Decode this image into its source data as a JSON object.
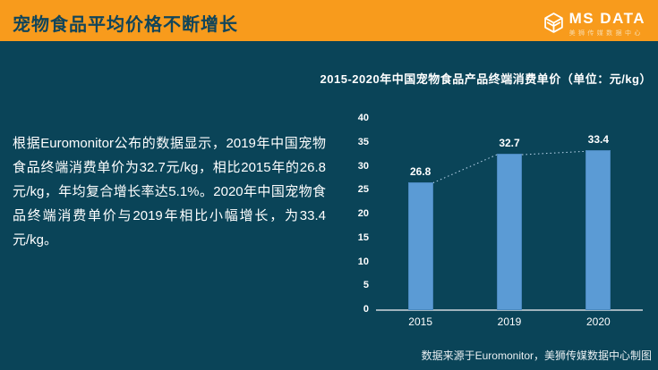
{
  "header": {
    "title": "宠物食品平均价格不断增长",
    "logo": {
      "name": "MS DATA",
      "subtitle": "美狮传媒数据中心",
      "icon": "cube-layers-icon"
    }
  },
  "body": {
    "paragraph": "根据Euromonitor公布的数据显示，2019年中国宠物食品终端消费单价为32.7元/kg，相比2015年的26.8元/kg，年均复合增长率达5.1%。2020年中国宠物食品终端消费单价与2019年相比小幅增长，为33.4元/kg。",
    "source_note": "数据来源于Euromonitor，美狮传媒数据中心制图"
  },
  "chart_data": {
    "type": "bar",
    "title": "2015-2020年中国宠物食品产品终端消费单价（单位：元/kg）",
    "categories": [
      "2015",
      "2019",
      "2020"
    ],
    "values": [
      26.8,
      32.7,
      33.4
    ],
    "value_labels": [
      "26.8",
      "32.7",
      "33.4"
    ],
    "xlabel": "",
    "ylabel": "",
    "ylim": [
      0,
      40
    ],
    "ytick_step": 5,
    "ytick_labels": [
      "0",
      "5",
      "10",
      "15",
      "20",
      "25",
      "30",
      "35",
      "40"
    ],
    "grid": false,
    "legend": false,
    "trendline": true
  },
  "colors": {
    "accent_orange": "#F89B1C",
    "background_teal": "#0A4458",
    "header_title": "#11455A",
    "bar_blue": "#5B9BD5",
    "trendline_blue": "#BDD7EE",
    "axis_gray": "#9FB3BC"
  }
}
